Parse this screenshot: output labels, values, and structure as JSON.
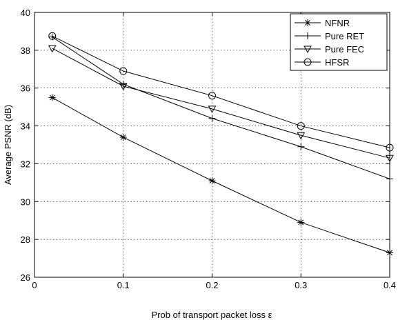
{
  "chart_data": {
    "type": "line",
    "title": "",
    "xlabel": "Prob of transport packet loss ε",
    "ylabel": "Average PSNR (dB)",
    "xlim": [
      0,
      0.4
    ],
    "ylim": [
      26,
      40
    ],
    "xticks": [
      0,
      0.1,
      0.2,
      0.3,
      0.4
    ],
    "xtick_labels": [
      "0",
      "0.1",
      "0.2",
      "0.3",
      "0.4"
    ],
    "yticks": [
      26,
      28,
      30,
      32,
      34,
      36,
      38,
      40
    ],
    "ytick_labels": [
      "26",
      "28",
      "30",
      "32",
      "34",
      "36",
      "38",
      "40"
    ],
    "grid": true,
    "legend_position": "top-right",
    "x": [
      0.02,
      0.1,
      0.2,
      0.3,
      0.4
    ],
    "series": [
      {
        "name": "NFNR",
        "marker": "asterisk",
        "values": [
          35.5,
          33.4,
          31.1,
          28.9,
          27.3
        ]
      },
      {
        "name": "Pure RET",
        "marker": "plus",
        "values": [
          38.7,
          36.2,
          34.4,
          32.9,
          31.2
        ]
      },
      {
        "name": "Pure FEC",
        "marker": "triangle-down",
        "values": [
          38.1,
          36.1,
          34.9,
          33.5,
          32.3
        ]
      },
      {
        "name": "HFSR",
        "marker": "circle",
        "values": [
          38.75,
          36.9,
          35.6,
          34.0,
          32.85
        ]
      }
    ]
  }
}
